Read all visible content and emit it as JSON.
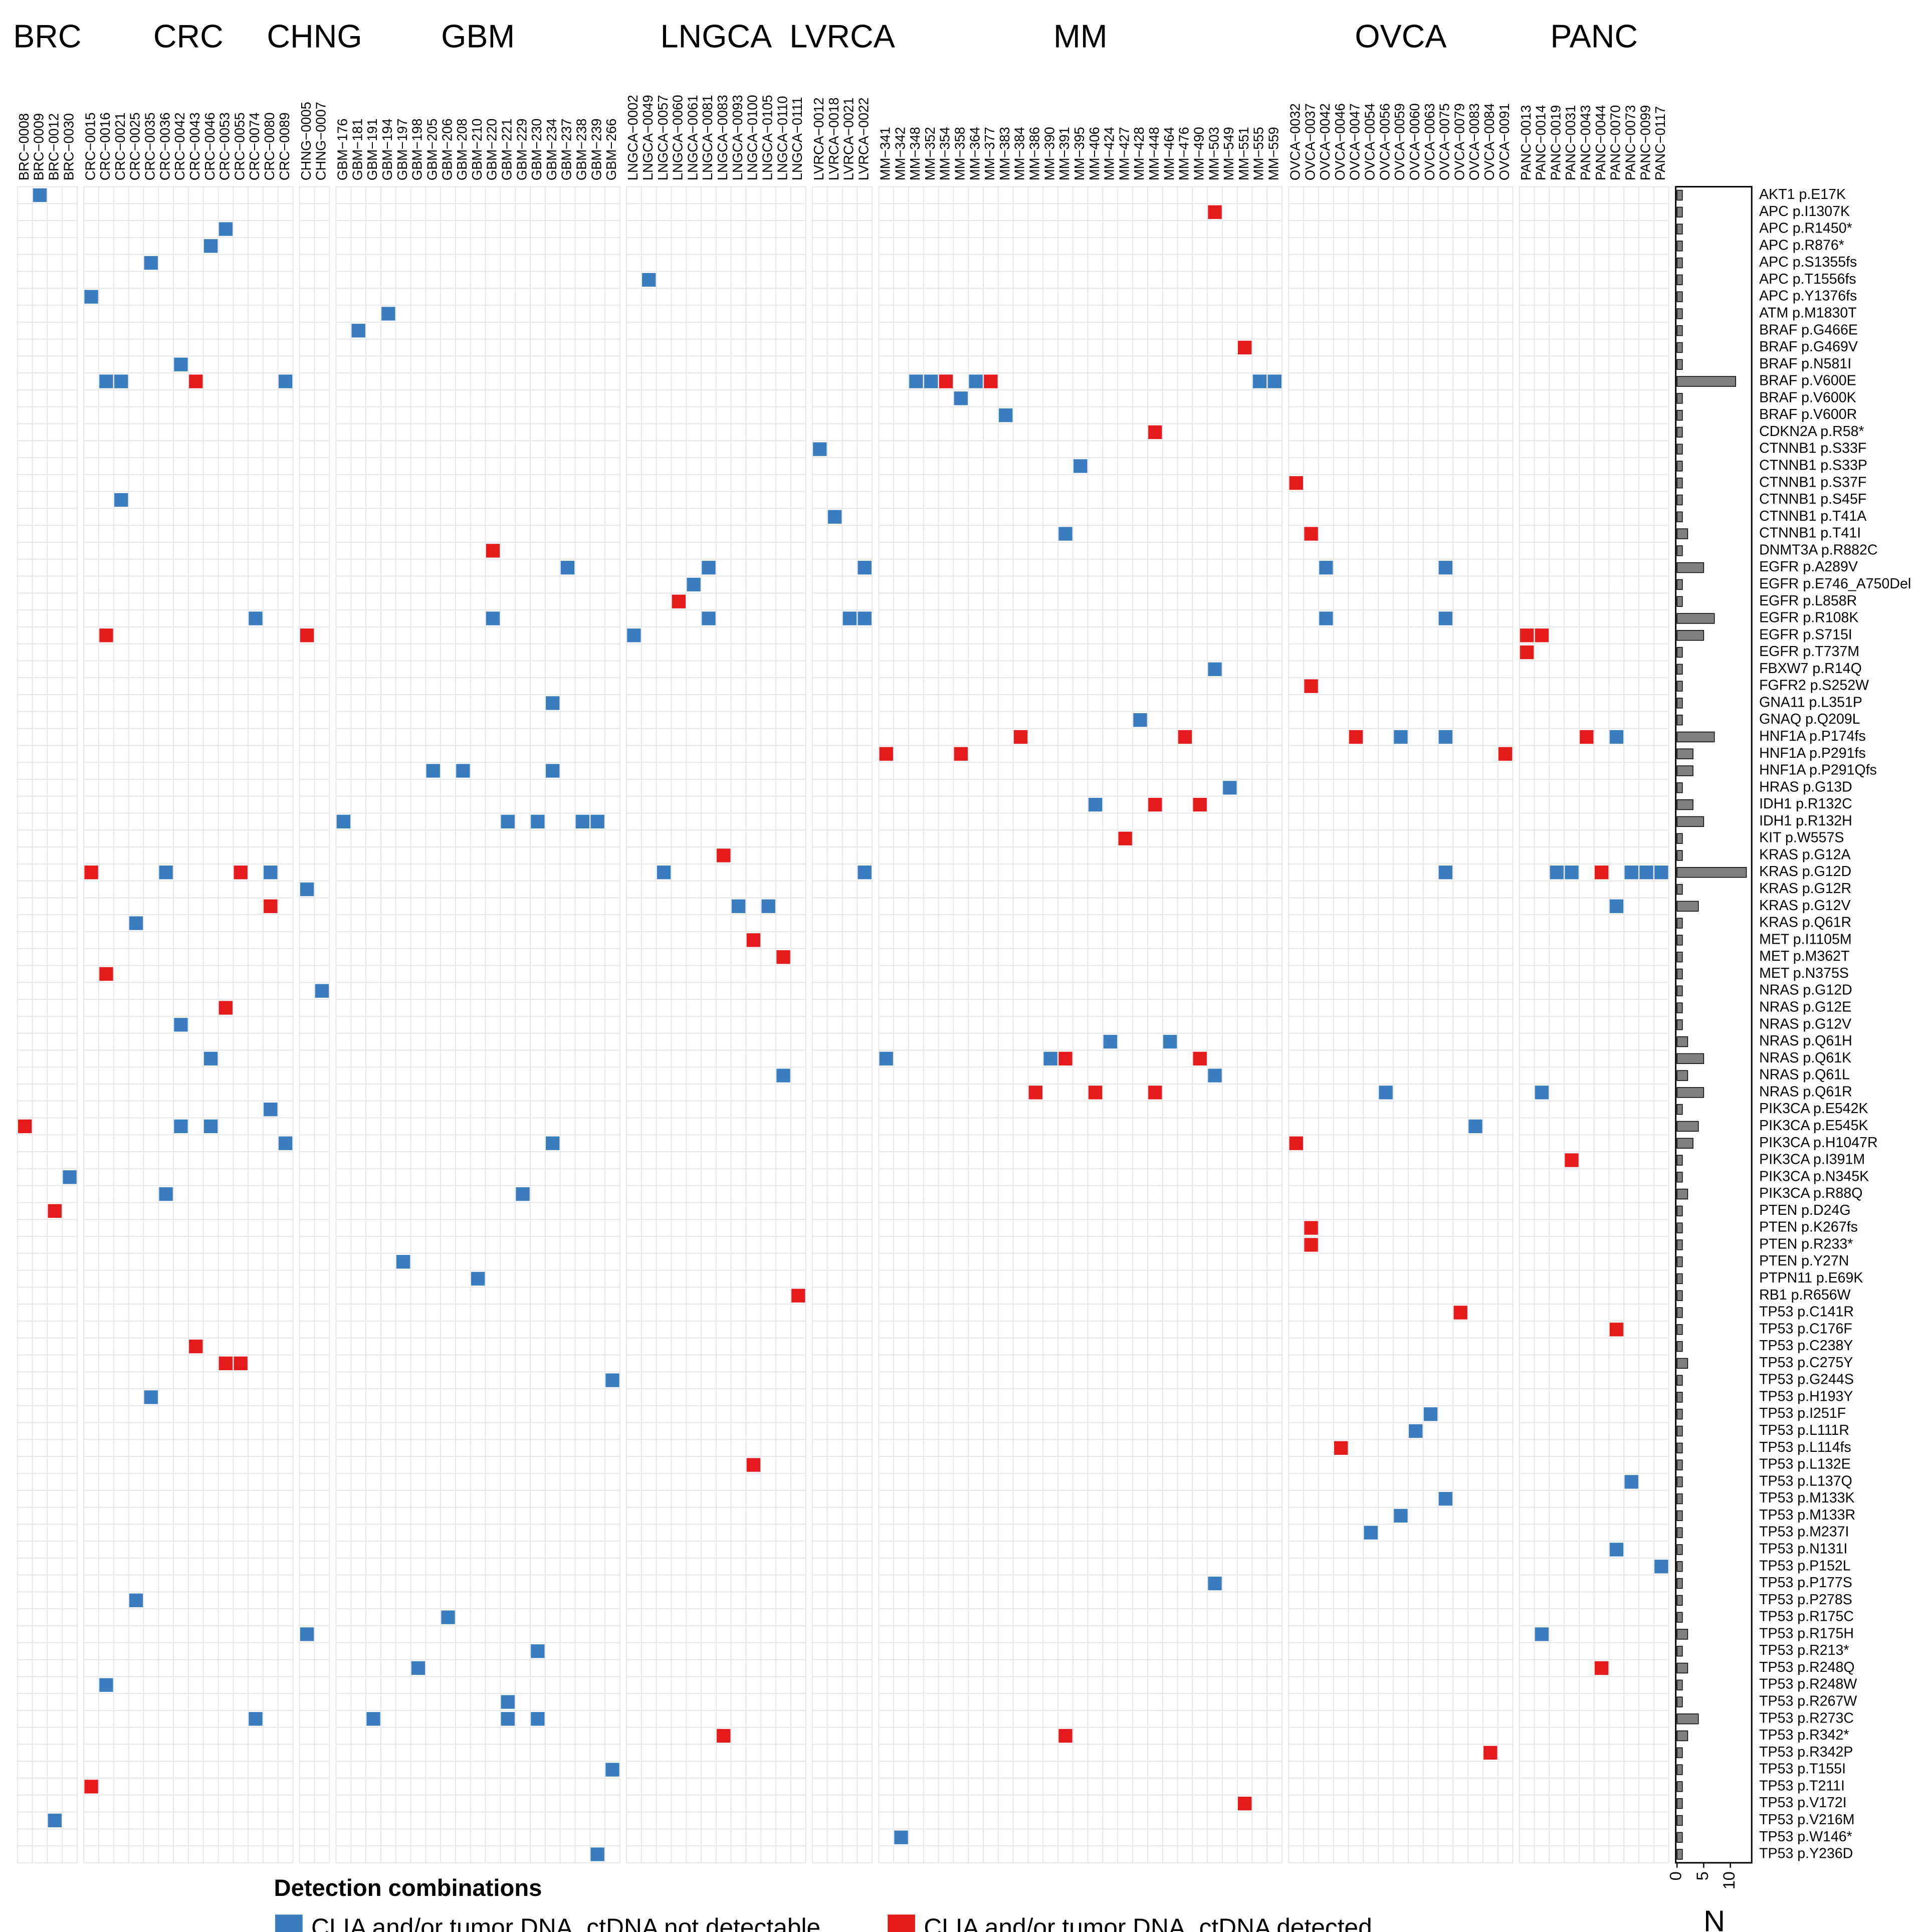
{
  "chart_data": {
    "type": "heatmap",
    "groups": [
      {
        "name": "BRC",
        "samples": [
          "BRC−0008",
          "BRC−0009",
          "BRC−0012",
          "BRC−0030"
        ]
      },
      {
        "name": "CRC",
        "samples": [
          "CRC−0015",
          "CRC−0016",
          "CRC−0021",
          "CRC−0025",
          "CRC−0035",
          "CRC−0036",
          "CRC−0042",
          "CRC−0043",
          "CRC−0046",
          "CRC−0053",
          "CRC−0055",
          "CRC−0074",
          "CRC−0080",
          "CRC−0089"
        ]
      },
      {
        "name": "CHNG",
        "samples": [
          "CHNG−0005",
          "CHNG−0007"
        ]
      },
      {
        "name": "GBM",
        "samples": [
          "GBM−176",
          "GBM−181",
          "GBM−191",
          "GBM−194",
          "GBM−197",
          "GBM−198",
          "GBM−205",
          "GBM−206",
          "GBM−208",
          "GBM−210",
          "GBM−220",
          "GBM−221",
          "GBM−229",
          "GBM−230",
          "GBM−234",
          "GBM−237",
          "GBM−238",
          "GBM−239",
          "GBM−266"
        ]
      },
      {
        "name": "LNGCA",
        "samples": [
          "LNGCA−0002",
          "LNGCA−0049",
          "LNGCA−0057",
          "LNGCA−0060",
          "LNGCA−0061",
          "LNGCA−0081",
          "LNGCA−0083",
          "LNGCA−0093",
          "LNGCA−0100",
          "LNGCA−0105",
          "LNGCA−0110",
          "LNGCA−0111"
        ]
      },
      {
        "name": "LVRCA",
        "samples": [
          "LVRCA−0012",
          "LVRCA−0018",
          "LVRCA−0021",
          "LVRCA−0022"
        ]
      },
      {
        "name": "MM",
        "samples": [
          "MM−341",
          "MM−342",
          "MM−348",
          "MM−352",
          "MM−354",
          "MM−358",
          "MM−364",
          "MM−377",
          "MM−383",
          "MM−384",
          "MM−386",
          "MM−390",
          "MM−391",
          "MM−395",
          "MM−406",
          "MM−424",
          "MM−427",
          "MM−428",
          "MM−448",
          "MM−464",
          "MM−476",
          "MM−490",
          "MM−503",
          "MM−549",
          "MM−551",
          "MM−555",
          "MM−559"
        ]
      },
      {
        "name": "OVCA",
        "samples": [
          "OVCA−0032",
          "OVCA−0037",
          "OVCA−0042",
          "OVCA−0046",
          "OVCA−0047",
          "OVCA−0054",
          "OVCA−0056",
          "OVCA−0059",
          "OVCA−0060",
          "OVCA−0063",
          "OVCA−0075",
          "OVCA−0079",
          "OVCA−0083",
          "OVCA−0084",
          "OVCA−0091"
        ]
      },
      {
        "name": "PANC",
        "samples": [
          "PANC−0013",
          "PANC−0014",
          "PANC−0019",
          "PANC−0031",
          "PANC−0043",
          "PANC−0044",
          "PANC−0070",
          "PANC−0073",
          "PANC−0099",
          "PANC−0117"
        ]
      }
    ],
    "rows": [
      "AKT1 p.E17K",
      "APC p.I1307K",
      "APC p.R1450*",
      "APC p.R876*",
      "APC p.S1355fs",
      "APC p.T1556fs",
      "APC p.Y1376fs",
      "ATM p.M1830T",
      "BRAF p.G466E",
      "BRAF p.G469V",
      "BRAF p.N581I",
      "BRAF p.V600E",
      "BRAF p.V600K",
      "BRAF p.V600R",
      "CDKN2A p.R58*",
      "CTNNB1 p.S33F",
      "CTNNB1 p.S33P",
      "CTNNB1 p.S37F",
      "CTNNB1 p.S45F",
      "CTNNB1 p.T41A",
      "CTNNB1 p.T41I",
      "DNMT3A p.R882C",
      "EGFR p.A289V",
      "EGFR p.E746_A750Del",
      "EGFR p.L858R",
      "EGFR p.R108K",
      "EGFR p.S715I",
      "EGFR p.T737M",
      "FBXW7 p.R14Q",
      "FGFR2 p.S252W",
      "GNA11 p.L351P",
      "GNAQ p.Q209L",
      "HNF1A p.P174fs",
      "HNF1A p.P291fs",
      "HNF1A p.P291Qfs",
      "HRAS p.G13D",
      "IDH1 p.R132C",
      "IDH1 p.R132H",
      "KIT p.W557S",
      "KRAS p.G12A",
      "KRAS p.G12D",
      "KRAS p.G12R",
      "KRAS p.G12V",
      "KRAS p.Q61R",
      "MET p.I1105M",
      "MET p.M362T",
      "MET p.N375S",
      "NRAS p.G12D",
      "NRAS p.G12E",
      "NRAS p.G12V",
      "NRAS p.Q61H",
      "NRAS p.Q61K",
      "NRAS p.Q61L",
      "NRAS p.Q61R",
      "PIK3CA p.E542K",
      "PIK3CA p.E545K",
      "PIK3CA p.H1047R",
      "PIK3CA p.I391M",
      "PIK3CA p.N345K",
      "PIK3CA p.R88Q",
      "PTEN p.D24G",
      "PTEN p.K267fs",
      "PTEN p.R233*",
      "PTEN p.Y27N",
      "PTPN11 p.E69K",
      "RB1 p.R656W",
      "TP53 p.C141R",
      "TP53 p.C176F",
      "TP53 p.C238Y",
      "TP53 p.C275Y",
      "TP53 p.G244S",
      "TP53 p.H193Y",
      "TP53 p.I251F",
      "TP53 p.L111R",
      "TP53 p.L114fs",
      "TP53 p.L132E",
      "TP53 p.L137Q",
      "TP53 p.M133K",
      "TP53 p.M133R",
      "TP53 p.M237I",
      "TP53 p.N131I",
      "TP53 p.P152L",
      "TP53 p.P177S",
      "TP53 p.P278S",
      "TP53 p.R175C",
      "TP53 p.R175H",
      "TP53 p.R213*",
      "TP53 p.R248Q",
      "TP53 p.R248W",
      "TP53 p.R267W",
      "TP53 p.R273C",
      "TP53 p.R342*",
      "TP53 p.R342P",
      "TP53 p.T155I",
      "TP53 p.T211I",
      "TP53 p.V172I",
      "TP53 p.V216M",
      "TP53 p.W146*",
      "TP53 p.Y236D"
    ],
    "cells": [
      [
        "BRC−0009",
        "AKT1 p.E17K",
        0
      ],
      [
        "MM−503",
        "APC p.I1307K",
        1
      ],
      [
        "CRC−0053",
        "APC p.R1450*",
        0
      ],
      [
        "CRC−0046",
        "APC p.R876*",
        0
      ],
      [
        "CRC−0035",
        "APC p.S1355fs",
        0
      ],
      [
        "LNGCA−0049",
        "APC p.T1556fs",
        0
      ],
      [
        "CRC−0015",
        "APC p.Y1376fs",
        0
      ],
      [
        "GBM−194",
        "ATM p.M1830T",
        0
      ],
      [
        "GBM−181",
        "BRAF p.G466E",
        0
      ],
      [
        "MM−551",
        "BRAF p.G469V",
        1
      ],
      [
        "CRC−0042",
        "BRAF p.N581I",
        0
      ],
      [
        "CRC−0016",
        "BRAF p.V600E",
        0
      ],
      [
        "CRC−0021",
        "BRAF p.V600E",
        0
      ],
      [
        "CRC−0043",
        "BRAF p.V600E",
        1
      ],
      [
        "CRC−0089",
        "BRAF p.V600E",
        0
      ],
      [
        "MM−348",
        "BRAF p.V600E",
        0
      ],
      [
        "MM−352",
        "BRAF p.V600E",
        0
      ],
      [
        "MM−354",
        "BRAF p.V600E",
        1
      ],
      [
        "MM−364",
        "BRAF p.V600E",
        0
      ],
      [
        "MM−377",
        "BRAF p.V600E",
        1
      ],
      [
        "MM−555",
        "BRAF p.V600E",
        0
      ],
      [
        "MM−559",
        "BRAF p.V600E",
        0
      ],
      [
        "MM−358",
        "BRAF p.V600K",
        0
      ],
      [
        "MM−383",
        "BRAF p.V600R",
        0
      ],
      [
        "MM−448",
        "CDKN2A p.R58*",
        1
      ],
      [
        "LVRCA−0012",
        "CTNNB1 p.S33F",
        0
      ],
      [
        "MM−395",
        "CTNNB1 p.S33P",
        0
      ],
      [
        "OVCA−0032",
        "CTNNB1 p.S37F",
        1
      ],
      [
        "CRC−0021",
        "CTNNB1 p.S45F",
        0
      ],
      [
        "LVRCA−0018",
        "CTNNB1 p.T41A",
        0
      ],
      [
        "MM−391",
        "CTNNB1 p.T41I",
        0
      ],
      [
        "OVCA−0037",
        "CTNNB1 p.T41I",
        1
      ],
      [
        "GBM−220",
        "DNMT3A p.R882C",
        1
      ],
      [
        "GBM−237",
        "EGFR p.A289V",
        0
      ],
      [
        "LNGCA−0081",
        "EGFR p.A289V",
        0
      ],
      [
        "LVRCA−0022",
        "EGFR p.A289V",
        0
      ],
      [
        "OVCA−0042",
        "EGFR p.A289V",
        0
      ],
      [
        "OVCA−0075",
        "EGFR p.A289V",
        0
      ],
      [
        "LNGCA−0061",
        "EGFR p.E746_A750Del",
        0
      ],
      [
        "LNGCA−0060",
        "EGFR p.L858R",
        1
      ],
      [
        "CRC−0074",
        "EGFR p.R108K",
        0
      ],
      [
        "GBM−220",
        "EGFR p.R108K",
        0
      ],
      [
        "LNGCA−0081",
        "EGFR p.R108K",
        0
      ],
      [
        "LVRCA−0021",
        "EGFR p.R108K",
        0
      ],
      [
        "LVRCA−0022",
        "EGFR p.R108K",
        0
      ],
      [
        "OVCA−0042",
        "EGFR p.R108K",
        0
      ],
      [
        "OVCA−0075",
        "EGFR p.R108K",
        0
      ],
      [
        "CRC−0016",
        "EGFR p.S715I",
        1
      ],
      [
        "CHNG−0005",
        "EGFR p.S715I",
        1
      ],
      [
        "LNGCA−0002",
        "EGFR p.S715I",
        0
      ],
      [
        "PANC−0013",
        "EGFR p.S715I",
        1
      ],
      [
        "PANC−0014",
        "EGFR p.S715I",
        1
      ],
      [
        "PANC−0013",
        "EGFR p.T737M",
        1
      ],
      [
        "MM−503",
        "FBXW7 p.R14Q",
        0
      ],
      [
        "OVCA−0037",
        "FGFR2 p.S252W",
        1
      ],
      [
        "GBM−234",
        "GNA11 p.L351P",
        0
      ],
      [
        "MM−428",
        "GNAQ p.Q209L",
        0
      ],
      [
        "MM−384",
        "HNF1A p.P174fs",
        1
      ],
      [
        "MM−476",
        "HNF1A p.P174fs",
        1
      ],
      [
        "OVCA−0047",
        "HNF1A p.P174fs",
        1
      ],
      [
        "OVCA−0059",
        "HNF1A p.P174fs",
        0
      ],
      [
        "OVCA−0075",
        "HNF1A p.P174fs",
        0
      ],
      [
        "PANC−0043",
        "HNF1A p.P174fs",
        1
      ],
      [
        "PANC−0070",
        "HNF1A p.P174fs",
        0
      ],
      [
        "MM−341",
        "HNF1A p.P291fs",
        1
      ],
      [
        "MM−358",
        "HNF1A p.P291fs",
        1
      ],
      [
        "OVCA−0091",
        "HNF1A p.P291fs",
        1
      ],
      [
        "GBM−205",
        "HNF1A p.P291Qfs",
        0
      ],
      [
        "GBM−208",
        "HNF1A p.P291Qfs",
        0
      ],
      [
        "GBM−234",
        "HNF1A p.P291Qfs",
        0
      ],
      [
        "MM−549",
        "HRAS p.G13D",
        0
      ],
      [
        "MM−406",
        "IDH1 p.R132C",
        0
      ],
      [
        "MM−448",
        "IDH1 p.R132C",
        1
      ],
      [
        "MM−490",
        "IDH1 p.R132C",
        1
      ],
      [
        "GBM−176",
        "IDH1 p.R132H",
        0
      ],
      [
        "GBM−221",
        "IDH1 p.R132H",
        0
      ],
      [
        "GBM−230",
        "IDH1 p.R132H",
        0
      ],
      [
        "GBM−238",
        "IDH1 p.R132H",
        0
      ],
      [
        "GBM−239",
        "IDH1 p.R132H",
        0
      ],
      [
        "MM−427",
        "KIT p.W557S",
        1
      ],
      [
        "LNGCA−0083",
        "KRAS p.G12A",
        1
      ],
      [
        "CRC−0015",
        "KRAS p.G12D",
        1
      ],
      [
        "CRC−0036",
        "KRAS p.G12D",
        0
      ],
      [
        "CRC−0055",
        "KRAS p.G12D",
        1
      ],
      [
        "CRC−0080",
        "KRAS p.G12D",
        0
      ],
      [
        "LNGCA−0057",
        "KRAS p.G12D",
        0
      ],
      [
        "LVRCA−0022",
        "KRAS p.G12D",
        0
      ],
      [
        "OVCA−0075",
        "KRAS p.G12D",
        0
      ],
      [
        "PANC−0019",
        "KRAS p.G12D",
        0
      ],
      [
        "PANC−0031",
        "KRAS p.G12D",
        0
      ],
      [
        "PANC−0044",
        "KRAS p.G12D",
        1
      ],
      [
        "PANC−0073",
        "KRAS p.G12D",
        0
      ],
      [
        "PANC−0099",
        "KRAS p.G12D",
        0
      ],
      [
        "PANC−0117",
        "KRAS p.G12D",
        0
      ],
      [
        "CHNG−0005",
        "KRAS p.G12R",
        0
      ],
      [
        "CRC−0080",
        "KRAS p.G12V",
        1
      ],
      [
        "LNGCA−0093",
        "KRAS p.G12V",
        0
      ],
      [
        "LNGCA−0105",
        "KRAS p.G12V",
        0
      ],
      [
        "PANC−0070",
        "KRAS p.G12V",
        0
      ],
      [
        "CRC−0025",
        "KRAS p.Q61R",
        0
      ],
      [
        "LNGCA−0100",
        "MET p.I1105M",
        1
      ],
      [
        "LNGCA−0110",
        "MET p.M362T",
        1
      ],
      [
        "CRC−0016",
        "MET p.N375S",
        1
      ],
      [
        "CHNG−0007",
        "NRAS p.G12D",
        0
      ],
      [
        "CRC−0053",
        "NRAS p.G12E",
        1
      ],
      [
        "CRC−0042",
        "NRAS p.G12V",
        0
      ],
      [
        "MM−424",
        "NRAS p.Q61H",
        0
      ],
      [
        "MM−464",
        "NRAS p.Q61H",
        0
      ],
      [
        "CRC−0046",
        "NRAS p.Q61K",
        0
      ],
      [
        "MM−341",
        "NRAS p.Q61K",
        0
      ],
      [
        "MM−390",
        "NRAS p.Q61K",
        0
      ],
      [
        "MM−391",
        "NRAS p.Q61K",
        1
      ],
      [
        "MM−490",
        "NRAS p.Q61K",
        1
      ],
      [
        "LNGCA−0110",
        "NRAS p.Q61L",
        0
      ],
      [
        "MM−503",
        "NRAS p.Q61L",
        0
      ],
      [
        "MM−386",
        "NRAS p.Q61R",
        1
      ],
      [
        "MM−406",
        "NRAS p.Q61R",
        1
      ],
      [
        "MM−448",
        "NRAS p.Q61R",
        1
      ],
      [
        "OVCA−0056",
        "NRAS p.Q61R",
        0
      ],
      [
        "PANC−0014",
        "NRAS p.Q61R",
        0
      ],
      [
        "CRC−0080",
        "PIK3CA p.E542K",
        0
      ],
      [
        "BRC−0008",
        "PIK3CA p.E545K",
        1
      ],
      [
        "CRC−0042",
        "PIK3CA p.E545K",
        0
      ],
      [
        "CRC−0046",
        "PIK3CA p.E545K",
        0
      ],
      [
        "OVCA−0083",
        "PIK3CA p.E545K",
        0
      ],
      [
        "CRC−0089",
        "PIK3CA p.H1047R",
        0
      ],
      [
        "GBM−234",
        "PIK3CA p.H1047R",
        0
      ],
      [
        "OVCA−0032",
        "PIK3CA p.H1047R",
        1
      ],
      [
        "PANC−0031",
        "PIK3CA p.I391M",
        1
      ],
      [
        "BRC−0030",
        "PIK3CA p.N345K",
        0
      ],
      [
        "CRC−0036",
        "PIK3CA p.R88Q",
        0
      ],
      [
        "GBM−229",
        "PIK3CA p.R88Q",
        0
      ],
      [
        "BRC−0012",
        "PTEN p.D24G",
        1
      ],
      [
        "OVCA−0037",
        "PTEN p.K267fs",
        1
      ],
      [
        "OVCA−0037",
        "PTEN p.R233*",
        1
      ],
      [
        "GBM−197",
        "PTEN p.Y27N",
        0
      ],
      [
        "GBM−210",
        "PTPN11 p.E69K",
        0
      ],
      [
        "LNGCA−0111",
        "RB1 p.R656W",
        1
      ],
      [
        "OVCA−0079",
        "TP53 p.C141R",
        1
      ],
      [
        "PANC−0070",
        "TP53 p.C176F",
        1
      ],
      [
        "CRC−0043",
        "TP53 p.C238Y",
        1
      ],
      [
        "CRC−0053",
        "TP53 p.C275Y",
        1
      ],
      [
        "CRC−0055",
        "TP53 p.C275Y",
        1
      ],
      [
        "GBM−266",
        "TP53 p.G244S",
        0
      ],
      [
        "CRC−0035",
        "TP53 p.H193Y",
        0
      ],
      [
        "OVCA−0063",
        "TP53 p.I251F",
        0
      ],
      [
        "OVCA−0060",
        "TP53 p.L111R",
        0
      ],
      [
        "OVCA−0046",
        "TP53 p.L114fs",
        1
      ],
      [
        "LNGCA−0100",
        "TP53 p.L132E",
        1
      ],
      [
        "PANC−0073",
        "TP53 p.L137Q",
        0
      ],
      [
        "OVCA−0075",
        "TP53 p.M133K",
        0
      ],
      [
        "OVCA−0059",
        "TP53 p.M133R",
        0
      ],
      [
        "OVCA−0054",
        "TP53 p.M237I",
        0
      ],
      [
        "PANC−0070",
        "TP53 p.N131I",
        0
      ],
      [
        "PANC−0117",
        "TP53 p.P152L",
        0
      ],
      [
        "MM−503",
        "TP53 p.P177S",
        0
      ],
      [
        "CRC−0025",
        "TP53 p.P278S",
        0
      ],
      [
        "GBM−206",
        "TP53 p.R175C",
        0
      ],
      [
        "CHNG−0005",
        "TP53 p.R175H",
        0
      ],
      [
        "PANC−0014",
        "TP53 p.R175H",
        0
      ],
      [
        "GBM−230",
        "TP53 p.R213*",
        0
      ],
      [
        "GBM−198",
        "TP53 p.R248Q",
        0
      ],
      [
        "PANC−0044",
        "TP53 p.R248Q",
        1
      ],
      [
        "CRC−0016",
        "TP53 p.R248W",
        0
      ],
      [
        "GBM−221",
        "TP53 p.R267W",
        0
      ],
      [
        "CRC−0074",
        "TP53 p.R273C",
        0
      ],
      [
        "GBM−191",
        "TP53 p.R273C",
        0
      ],
      [
        "GBM−221",
        "TP53 p.R273C",
        0
      ],
      [
        "GBM−230",
        "TP53 p.R273C",
        0
      ],
      [
        "LNGCA−0083",
        "TP53 p.R342*",
        1
      ],
      [
        "MM−391",
        "TP53 p.R342*",
        1
      ],
      [
        "OVCA−0084",
        "TP53 p.R342P",
        1
      ],
      [
        "GBM−266",
        "TP53 p.T155I",
        0
      ],
      [
        "CRC−0015",
        "TP53 p.T211I",
        1
      ],
      [
        "MM−551",
        "TP53 p.V172I",
        1
      ],
      [
        "BRC−0012",
        "TP53 p.V216M",
        0
      ],
      [
        "MM−342",
        "TP53 p.W146*",
        0
      ],
      [
        "GBM−239",
        "TP53 p.Y236D",
        0
      ]
    ],
    "legend_title": "Detection combinations",
    "legend": [
      {
        "label": "CLIA and/or tumor DNA, ctDNA not detectable",
        "color": "#3a7dbf"
      },
      {
        "label": "CLIA and/or tumor DNA, ctDNA detected",
        "color": "#e41a1c"
      }
    ],
    "counts": {
      "type": "bar",
      "xlabel": "N",
      "xlim": [
        0,
        14
      ],
      "xticks": [
        0,
        5,
        10
      ],
      "color": "#808080",
      "values": [
        1,
        1,
        1,
        1,
        1,
        1,
        1,
        1,
        1,
        1,
        1,
        11,
        1,
        1,
        1,
        1,
        1,
        1,
        1,
        1,
        2,
        1,
        5,
        1,
        1,
        7,
        5,
        1,
        1,
        1,
        1,
        1,
        7,
        3,
        3,
        1,
        3,
        5,
        1,
        1,
        13,
        1,
        4,
        1,
        1,
        1,
        1,
        1,
        1,
        1,
        2,
        5,
        2,
        5,
        1,
        4,
        3,
        1,
        1,
        2,
        1,
        1,
        1,
        1,
        1,
        1,
        1,
        1,
        1,
        2,
        1,
        1,
        1,
        1,
        1,
        1,
        1,
        1,
        1,
        1,
        1,
        1,
        1,
        1,
        1,
        2,
        1,
        2,
        1,
        1,
        4,
        2,
        1,
        1,
        1,
        1,
        1,
        1,
        1
      ]
    }
  }
}
